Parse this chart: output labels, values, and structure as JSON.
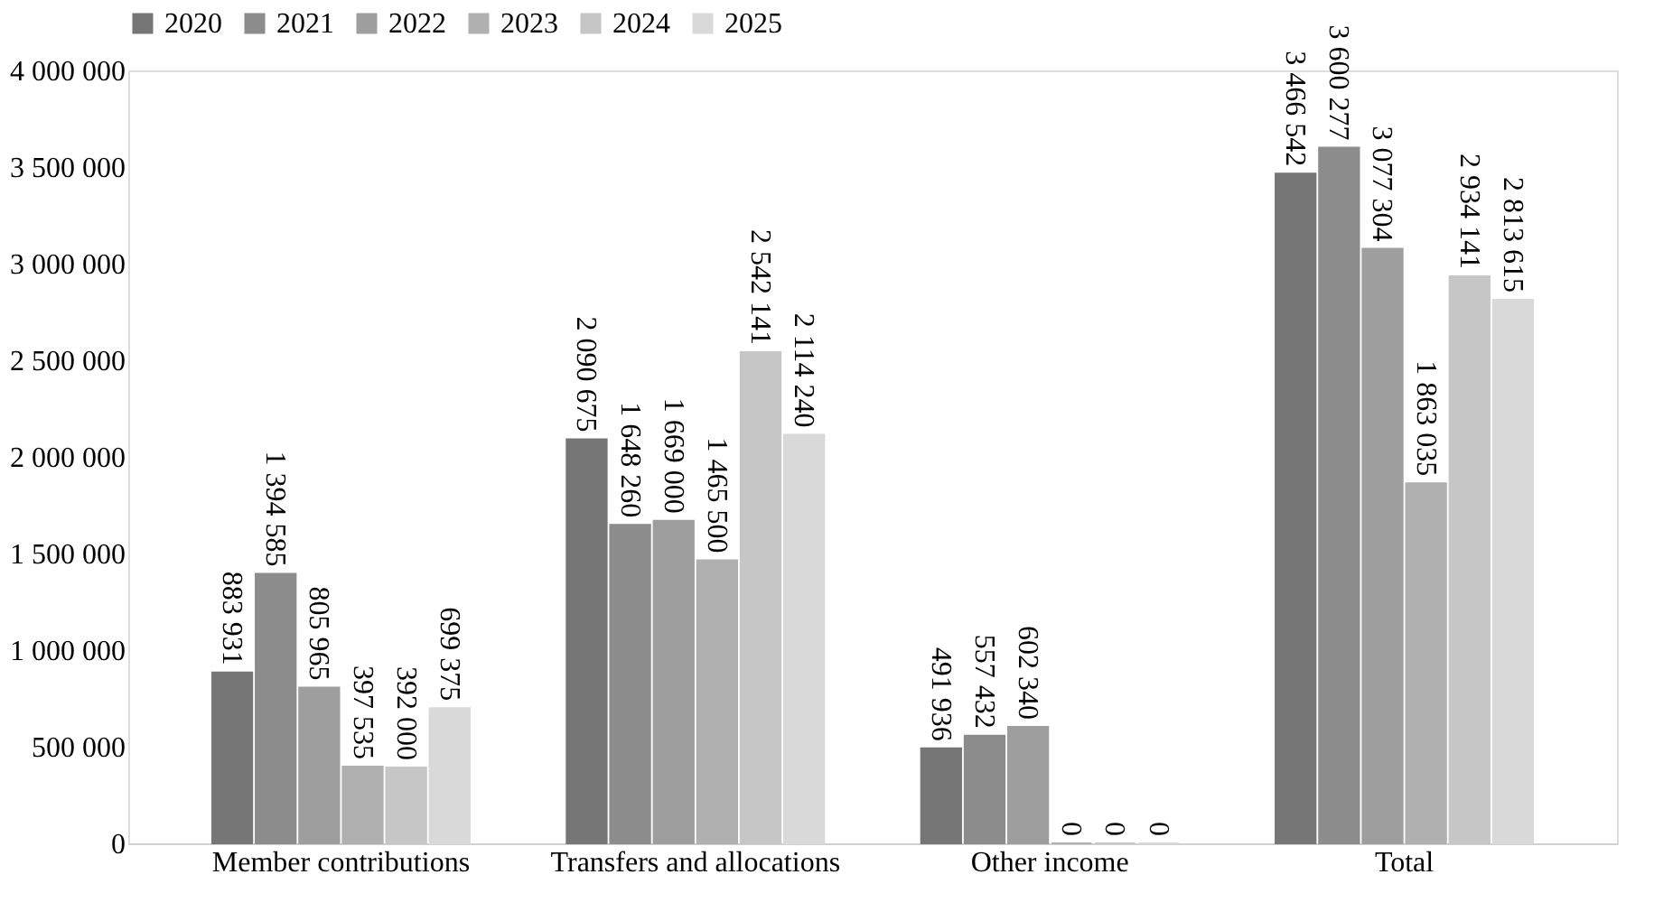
{
  "chart_data": {
    "type": "bar",
    "categories": [
      "Member contributions",
      "Transfers and allocations",
      "Other income",
      "Total"
    ],
    "series": [
      {
        "name": "2020",
        "color": "#767676",
        "values": [
          883931,
          2090675,
          491936,
          3466542
        ]
      },
      {
        "name": "2021",
        "color": "#8c8c8c",
        "values": [
          1394585,
          1648260,
          557432,
          3600277
        ]
      },
      {
        "name": "2022",
        "color": "#9e9e9e",
        "values": [
          805965,
          1669000,
          602340,
          3077304
        ]
      },
      {
        "name": "2023",
        "color": "#b0b0b0",
        "values": [
          397535,
          1465500,
          0,
          1863035
        ]
      },
      {
        "name": "2024",
        "color": "#c6c6c6",
        "values": [
          392000,
          2542141,
          0,
          2934141
        ]
      },
      {
        "name": "2025",
        "color": "#d9d9d9",
        "values": [
          699375,
          2114240,
          0,
          2813615
        ]
      }
    ],
    "ylim": [
      0,
      4000000
    ],
    "yticks": [
      0,
      500000,
      1000000,
      1500000,
      2000000,
      2500000,
      3000000,
      3500000,
      4000000
    ],
    "data_labels": true,
    "grid": false,
    "legend": "top"
  }
}
